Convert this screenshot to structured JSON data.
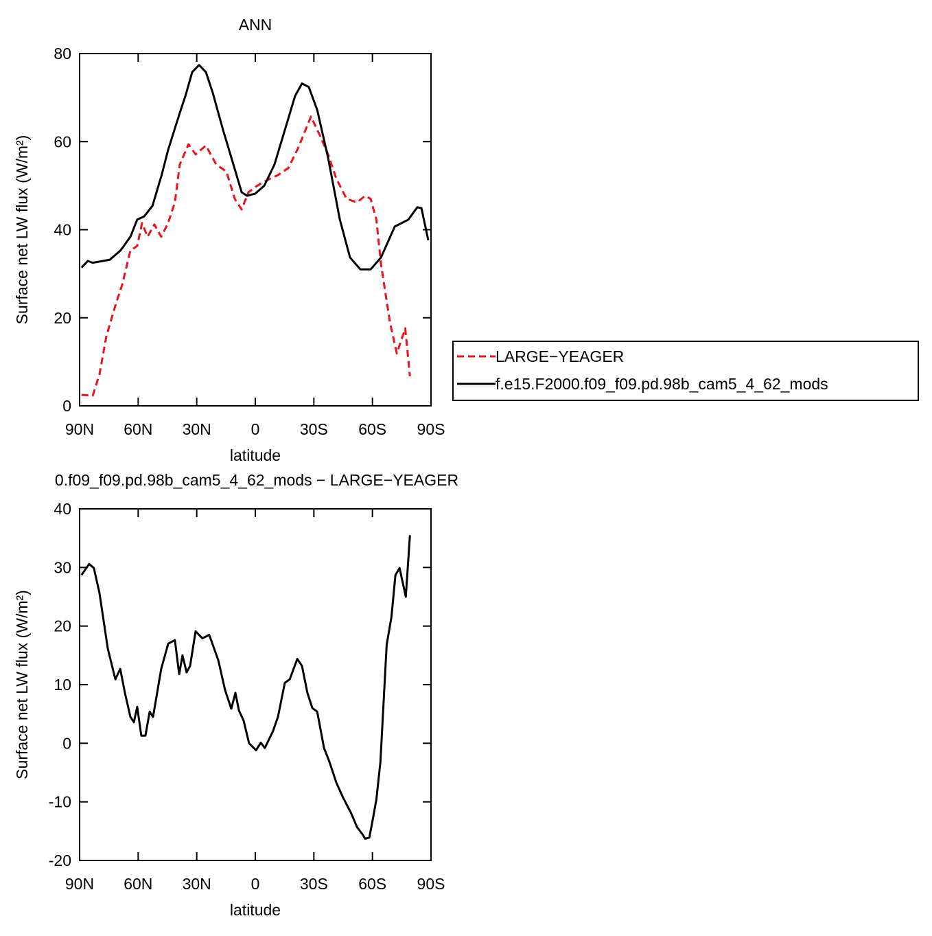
{
  "chart_data": [
    {
      "type": "line",
      "title": "ANN",
      "xlabel": "latitude",
      "ylabel": "Surface net LW flux (W/m²)",
      "xlim": [
        90,
        -90
      ],
      "ylim": [
        0,
        80
      ],
      "xticks": [
        {
          "value": 90,
          "label": "90N"
        },
        {
          "value": 60,
          "label": "60N"
        },
        {
          "value": 30,
          "label": "30N"
        },
        0,
        {
          "value": -30,
          "label": "30S"
        },
        {
          "value": -60,
          "label": "60S"
        },
        {
          "value": -90,
          "label": "90S"
        }
      ],
      "yticks": [
        0,
        20,
        40,
        60,
        80
      ],
      "legend": "right",
      "series": [
        {
          "name": "LARGE−YEAGER",
          "color": "#e8141b",
          "style": "dashed",
          "x": [
            89,
            83.3,
            79.8,
            76.3,
            71.7,
            68.2,
            64,
            60.5,
            58,
            55.2,
            51.7,
            48.2,
            44.7,
            41.2,
            38.7,
            34.2,
            30.6,
            25.3,
            20,
            14.8,
            10.5,
            7,
            3.5,
            -1,
            -6.3,
            -11.6,
            -16.9,
            -22.1,
            -28.5,
            -32.7,
            -37.3,
            -41.5,
            -46.8,
            -52.1,
            -56.3,
            -59.1,
            -62,
            -64.4,
            -69,
            -72.5,
            -76.8,
            -79.2
          ],
          "values": [
            2.5,
            2.3,
            7.2,
            15.8,
            22.8,
            27.5,
            35.3,
            36.3,
            41.5,
            38.4,
            41.2,
            38.4,
            41.5,
            46.2,
            54.8,
            59.4,
            57.1,
            59.1,
            54.8,
            53.2,
            47,
            44.6,
            48.5,
            50,
            51.3,
            52.4,
            54,
            58.7,
            65.7,
            61.8,
            57.1,
            51.6,
            47,
            46.2,
            47.7,
            47,
            42.3,
            32.1,
            18.9,
            11.9,
            17.6,
            6.7
          ]
        },
        {
          "name": "f.e15.F2000.f09_f09.pd.98b_cam5_4_62_mods",
          "color": "#000000",
          "style": "solid",
          "x": [
            89,
            85.8,
            83.3,
            78,
            74.5,
            69,
            64,
            60.5,
            57,
            52.7,
            48,
            44.6,
            38.7,
            35.8,
            32.3,
            28.8,
            25.3,
            21.8,
            16.5,
            11.2,
            7,
            4.2,
            0,
            -4.6,
            -9.8,
            -15.1,
            -20.4,
            -23.9,
            -27.4,
            -31.7,
            -37.3,
            -43.3,
            -48.5,
            -53.8,
            -59.1,
            -64.4,
            -71.4,
            -78.4,
            -83,
            -85.1,
            -88.6
          ],
          "values": [
            31.4,
            32.9,
            32.5,
            32.9,
            33.2,
            35.3,
            38.4,
            42.3,
            43,
            45.4,
            52.4,
            58.2,
            66.5,
            70.4,
            75.8,
            77.4,
            75.8,
            71.1,
            62.6,
            54.8,
            48.5,
            47.7,
            48.2,
            50,
            54.8,
            62.6,
            70.4,
            73.2,
            72.4,
            67.2,
            56.3,
            42.3,
            33.7,
            31,
            31,
            33.7,
            40.7,
            42.3,
            45.1,
            44.9,
            37.6
          ]
        }
      ]
    },
    {
      "type": "line",
      "title": "0.f09_f09.pd.98b_cam5_4_62_mods − LARGE−YEAGER",
      "xlabel": "latitude",
      "ylabel": "Surface net LW flux (W/m²)",
      "xlim": [
        90,
        -90
      ],
      "ylim": [
        -20,
        40
      ],
      "xticks": [
        {
          "value": 90,
          "label": "90N"
        },
        {
          "value": 60,
          "label": "60N"
        },
        {
          "value": 30,
          "label": "30N"
        },
        0,
        {
          "value": -30,
          "label": "30S"
        },
        {
          "value": -60,
          "label": "60S"
        },
        {
          "value": -90,
          "label": "90S"
        }
      ],
      "yticks": [
        -20,
        -10,
        0,
        10,
        20,
        30,
        40
      ],
      "series": [
        {
          "color": "#000000",
          "style": "solid",
          "x": [
            89,
            85.1,
            82.7,
            79.8,
            75.6,
            71.7,
            69.2,
            66.8,
            64,
            62.2,
            60.5,
            58.4,
            56.3,
            54.1,
            52.4,
            48.2,
            44.6,
            41.2,
            39,
            37.3,
            35.2,
            33.4,
            30.6,
            27.1,
            23.6,
            19,
            15.5,
            12.3,
            10.2,
            8.4,
            6,
            3.2,
            -0.4,
            -2.8,
            -4.9,
            -9.1,
            -11.6,
            -15.1,
            -17.6,
            -21.5,
            -23.9,
            -26.7,
            -29.2,
            -31.7,
            -35.2,
            -38,
            -41.5,
            -45,
            -49.2,
            -52.1,
            -54.8,
            -56.3,
            -58.4,
            -59.8,
            -62,
            -64.1,
            -67.3,
            -69.7,
            -71.8,
            -73.9,
            -77.1,
            -79.2
          ],
          "values": [
            28.7,
            30.6,
            29.9,
            25.6,
            16.2,
            10.9,
            12.7,
            8.6,
            4.5,
            3.6,
            6.2,
            1.3,
            1.3,
            5.4,
            4.5,
            12.7,
            17,
            17.6,
            11.8,
            15,
            12.1,
            13.2,
            19.1,
            17.9,
            18.5,
            14.2,
            9.1,
            5.9,
            8.6,
            5.6,
            3.9,
            0,
            -1.2,
            0.1,
            -0.8,
            2.1,
            4.5,
            10.3,
            10.9,
            14.4,
            13.2,
            8.6,
            6,
            5.4,
            -0.8,
            -3.2,
            -6.7,
            -9.3,
            -12,
            -14.3,
            -15.5,
            -16.3,
            -16.1,
            -13.7,
            -9.6,
            -3.2,
            16.8,
            21.5,
            28.7,
            29.9,
            25,
            35.5
          ]
        }
      ]
    }
  ]
}
